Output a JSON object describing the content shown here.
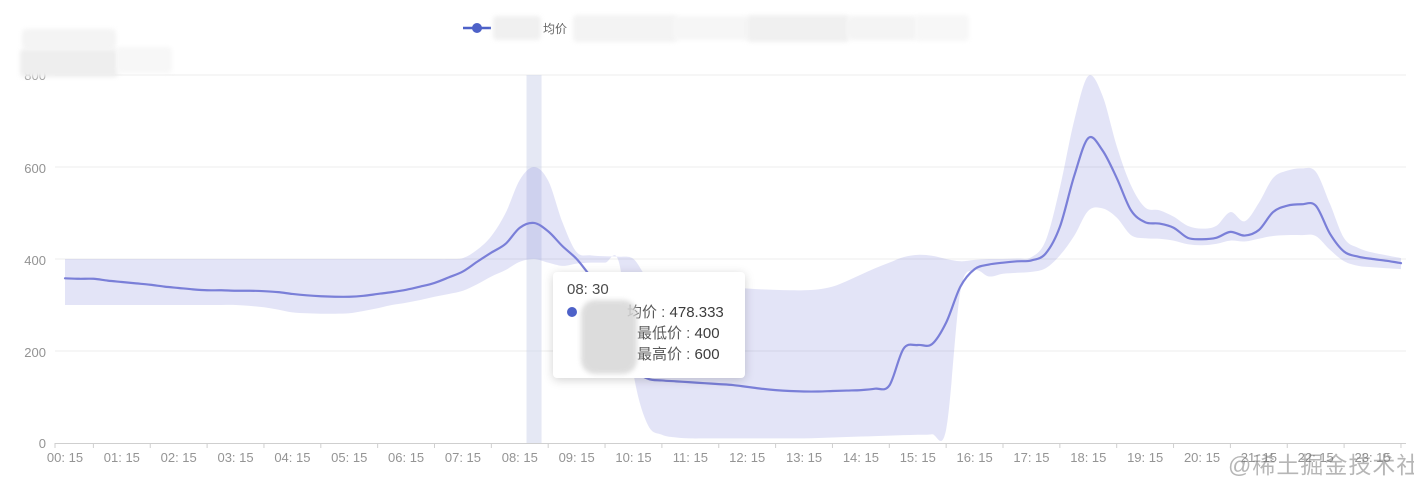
{
  "legend": {
    "series_label": "均价"
  },
  "y_axis": {
    "labels": [
      "800",
      "600",
      "400",
      "200",
      "0"
    ]
  },
  "x_axis": {
    "labels": [
      "00: 15",
      "01: 15",
      "02: 15",
      "03: 15",
      "04: 15",
      "05: 15",
      "06: 15",
      "07: 15",
      "08: 15",
      "09: 15",
      "10: 15",
      "11: 15",
      "12: 15",
      "13: 15",
      "14: 15",
      "15: 15",
      "16: 15",
      "17: 15",
      "18: 15",
      "19: 15",
      "20: 15",
      "21: 15",
      "22: 15",
      "23: 15"
    ]
  },
  "tooltip": {
    "time": "08: 30",
    "separator": " : ",
    "rows": [
      {
        "label": "均价",
        "value": "478.333"
      },
      {
        "label": "最低价",
        "value": "400"
      },
      {
        "label": "最高价",
        "value": "600"
      }
    ]
  },
  "watermark": "@稀土掘金技术社区",
  "colors": {
    "series_line": "#7a7fd8",
    "band_fill": "rgba(116,120,215,0.20)",
    "legend_marker": "#4d61c8",
    "grid_line": "#ececec",
    "axis_line": "#cfcfcf",
    "axis_text": "#949494",
    "pointer_shadow": "rgba(203,210,233,0.5)"
  },
  "chart_data": {
    "type": "line",
    "interval_minutes": 15,
    "ylim": [
      0,
      800
    ],
    "y_ticks": [
      0,
      200,
      400,
      600,
      800
    ],
    "grid": true,
    "legend_position": "top",
    "smooth": true,
    "highlight_index": 33,
    "x": [
      "00:15",
      "00:30",
      "00:45",
      "01:00",
      "01:15",
      "01:30",
      "01:45",
      "02:00",
      "02:15",
      "02:30",
      "02:45",
      "03:00",
      "03:15",
      "03:30",
      "03:45",
      "04:00",
      "04:15",
      "04:30",
      "04:45",
      "05:00",
      "05:15",
      "05:30",
      "05:45",
      "06:00",
      "06:15",
      "06:30",
      "06:45",
      "07:00",
      "07:15",
      "07:30",
      "07:45",
      "08:00",
      "08:15",
      "08:30",
      "08:45",
      "09:00",
      "09:15",
      "09:30",
      "09:45",
      "10:00",
      "10:15",
      "10:30",
      "10:45",
      "11:00",
      "11:15",
      "11:30",
      "11:45",
      "12:00",
      "12:15",
      "12:30",
      "12:45",
      "13:00",
      "13:15",
      "13:30",
      "13:45",
      "14:00",
      "14:15",
      "14:30",
      "14:45",
      "15:00",
      "15:15",
      "15:30",
      "15:45",
      "16:00",
      "16:15",
      "16:30",
      "16:45",
      "17:00",
      "17:15",
      "17:30",
      "17:45",
      "18:00",
      "18:15",
      "18:30",
      "18:45",
      "19:00",
      "19:15",
      "19:30",
      "19:45",
      "20:00",
      "20:15",
      "20:30",
      "20:45",
      "21:00",
      "21:15",
      "21:30",
      "21:45",
      "22:00",
      "22:15",
      "22:30",
      "22:45",
      "23:00",
      "23:15",
      "23:30",
      "23:45"
    ],
    "series": [
      {
        "name": "均价",
        "values": [
          358,
          357,
          357,
          353,
          350,
          347,
          344,
          340,
          337,
          334,
          332,
          332,
          331,
          331,
          330,
          328,
          324,
          321,
          319,
          318,
          318,
          320,
          324,
          328,
          333,
          340,
          348,
          360,
          373,
          394,
          414,
          433,
          468,
          478.333,
          460,
          428,
          400,
          362,
          330,
          255,
          165,
          140,
          136,
          134,
          132,
          130,
          128,
          126,
          122,
          118,
          115,
          113,
          112,
          112,
          113,
          114,
          115,
          118,
          125,
          205,
          213,
          215,
          262,
          340,
          378,
          388,
          392,
          395,
          397,
          412,
          470,
          580,
          663,
          636,
          576,
          506,
          480,
          477,
          468,
          446,
          443,
          446,
          459,
          451,
          463,
          502,
          516,
          519,
          516,
          455,
          416,
          405,
          400,
          396,
          391
        ]
      },
      {
        "name": "最低价",
        "values": [
          300,
          300,
          300,
          300,
          300,
          300,
          300,
          300,
          300,
          300,
          300,
          300,
          300,
          298,
          295,
          290,
          284,
          282,
          281,
          281,
          282,
          287,
          293,
          300,
          305,
          311,
          318,
          324,
          331,
          345,
          362,
          376,
          394,
          400,
          392,
          385,
          390,
          392,
          392,
          390,
          150,
          40,
          18,
          12,
          10,
          10,
          10,
          10,
          10,
          10,
          10,
          10,
          10,
          11,
          12,
          13,
          14,
          15,
          16,
          17,
          18,
          19,
          30,
          330,
          375,
          362,
          368,
          370,
          372,
          380,
          408,
          450,
          505,
          510,
          490,
          452,
          445,
          444,
          440,
          432,
          430,
          433,
          440,
          438,
          444,
          450,
          452,
          452,
          450,
          420,
          395,
          385,
          382,
          380,
          378
        ]
      },
      {
        "name": "最高价",
        "values": [
          400,
          400,
          400,
          400,
          400,
          400,
          400,
          400,
          400,
          400,
          400,
          400,
          400,
          400,
          400,
          400,
          400,
          400,
          400,
          400,
          400,
          400,
          400,
          400,
          400,
          400,
          400,
          400,
          402,
          420,
          450,
          500,
          572,
          600,
          570,
          480,
          415,
          408,
          406,
          405,
          400,
          358,
          352,
          350,
          348,
          342,
          340,
          338,
          336,
          334,
          333,
          332,
          332,
          334,
          340,
          352,
          366,
          380,
          392,
          404,
          409,
          407,
          400,
          395,
          398,
          400,
          400,
          401,
          404,
          440,
          555,
          700,
          798,
          755,
          645,
          560,
          512,
          506,
          492,
          472,
          466,
          472,
          502,
          482,
          522,
          576,
          592,
          597,
          590,
          520,
          445,
          424,
          414,
          408,
          402
        ]
      }
    ]
  }
}
